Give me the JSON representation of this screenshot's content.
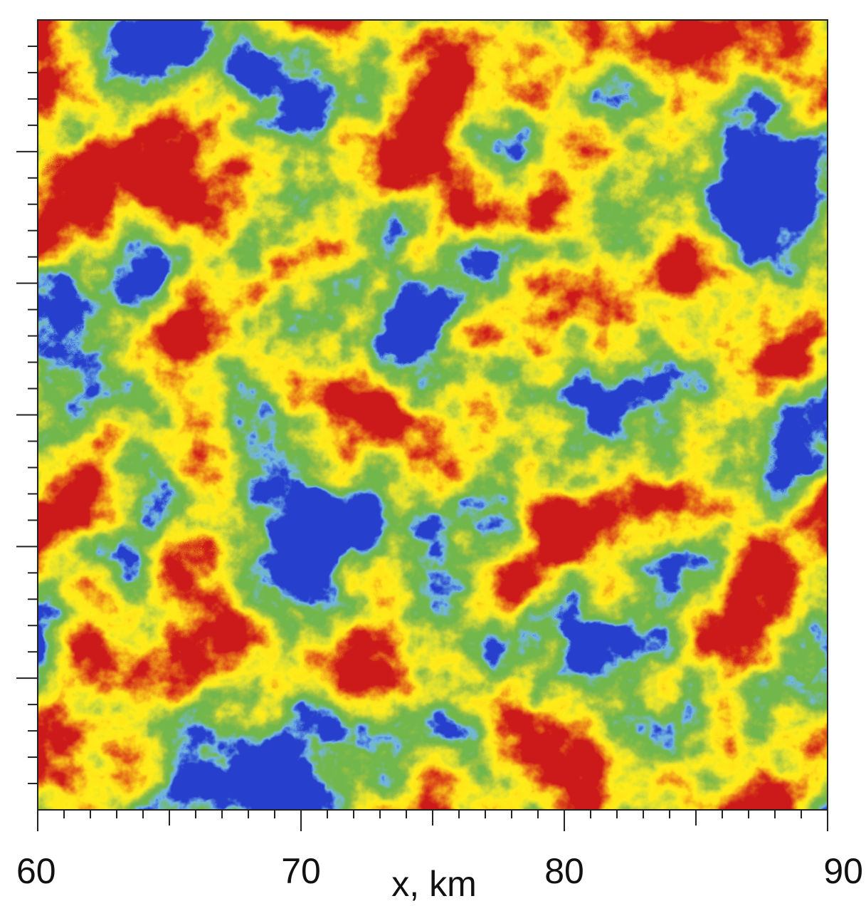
{
  "chart_data": {
    "type": "heatmap",
    "xlabel": "x, km",
    "xlim": [
      60,
      90
    ],
    "xticks": [
      60,
      70,
      80,
      90
    ]
  }
}
